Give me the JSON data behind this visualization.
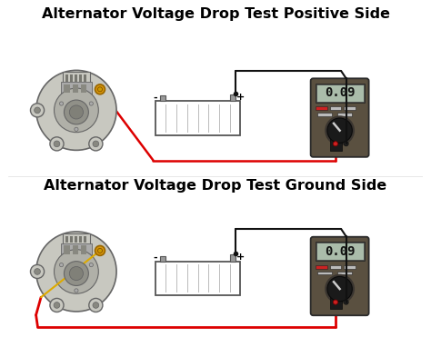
{
  "title1": "Alternator Voltage Drop Test Positive Side",
  "title2": "Alternator Voltage Drop Test Ground Side",
  "title_fontsize": 11.5,
  "title_fontweight": "bold",
  "bg_color": "#ffffff",
  "display_value": "0.09",
  "colors": {
    "red_wire": "#dd0000",
    "black_wire": "#111111",
    "meter_body": "#5a5040",
    "meter_body2": "#6a6050",
    "meter_display_bg": "#9ab89a",
    "meter_display_border": "#333333",
    "battery_body": "#ffffff",
    "battery_outline": "#555555",
    "alt_outer": "#c8c8c0",
    "alt_mid": "#b0b0a8",
    "alt_inner": "#909088",
    "alt_center": "#808078",
    "alt_outline": "#666666",
    "gold_terminal": "#d4940a",
    "knob_color": "#1a1a1a",
    "button_red": "#cc2222",
    "button_white": "#cccccc",
    "probe_black": "#222222",
    "probe_red": "#cc2222",
    "jack_black": "#333333",
    "jack_red": "#cc2222"
  }
}
